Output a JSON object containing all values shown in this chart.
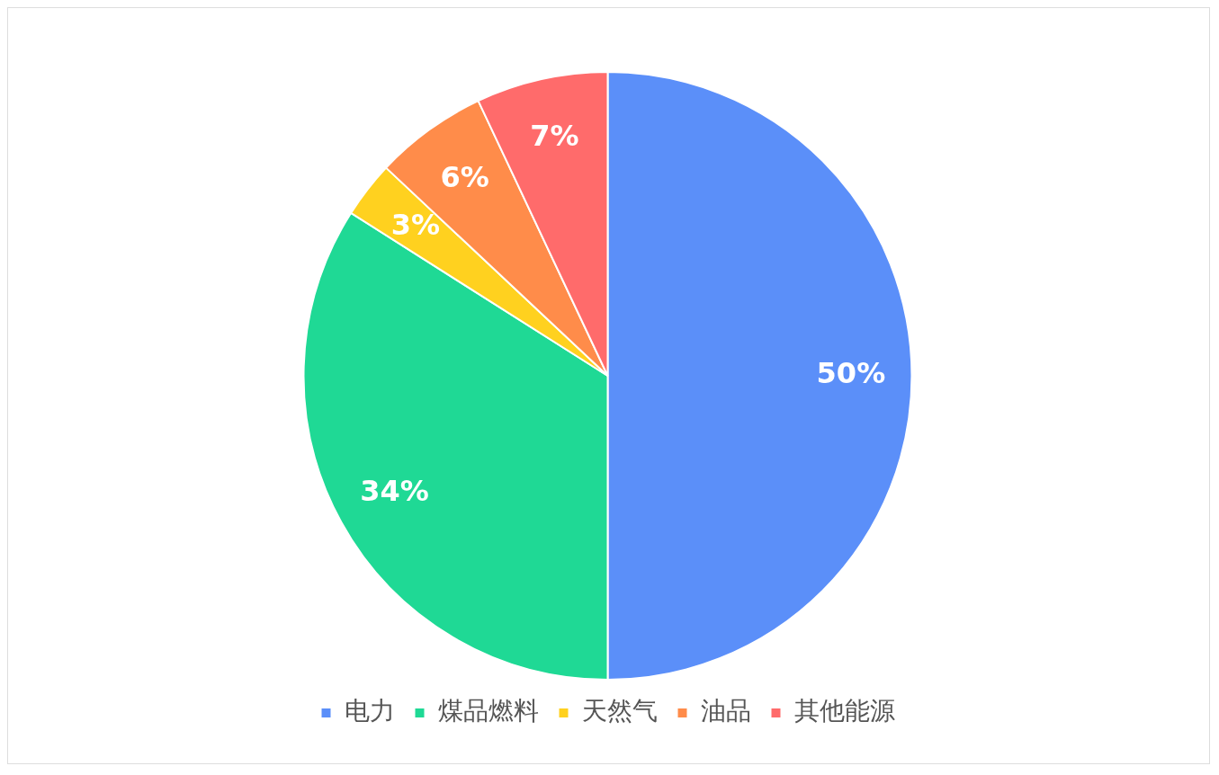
{
  "chart_data": {
    "type": "pie",
    "categories": [
      "电力",
      "煤品燃料",
      "天然气",
      "油品",
      "其他能源"
    ],
    "values": [
      50,
      34,
      3,
      6,
      7
    ],
    "colors": [
      "#5b8ff9",
      "#1fd995",
      "#ffd11f",
      "#ff8c4a",
      "#ff6b6b"
    ],
    "value_labels": [
      "50%",
      "34%",
      "3%",
      "6%",
      "7%"
    ],
    "legend": "bottom"
  }
}
